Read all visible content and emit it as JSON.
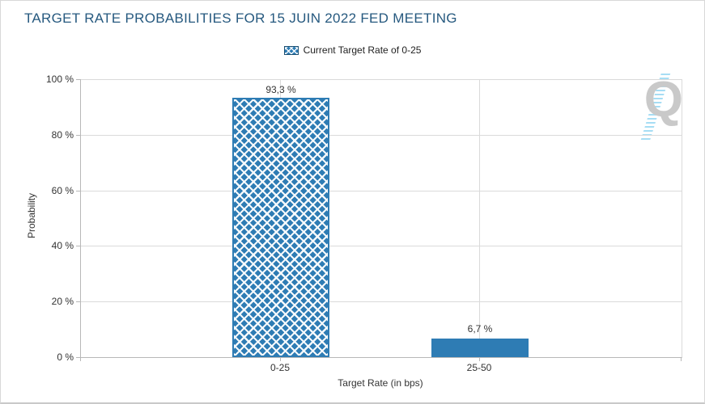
{
  "header": {
    "title": "TARGET RATE PROBABILITIES FOR 15 JUIN 2022 FED MEETING"
  },
  "legend": {
    "items": [
      {
        "label": "Current Target Rate of 0-25",
        "swatch": "blue-crosshatch"
      }
    ]
  },
  "watermark": {
    "letter": "Q"
  },
  "chart_data": {
    "type": "bar",
    "title": "TARGET RATE PROBABILITIES FOR 15 JUIN 2022 FED MEETING",
    "categories": [
      "0-25",
      "25-50"
    ],
    "values": [
      93.3,
      6.7
    ],
    "value_labels": [
      "93,3 %",
      "6,7 %"
    ],
    "series": [
      {
        "name": "Current Target Rate of 0-25",
        "values": [
          93.3,
          6.7
        ]
      }
    ],
    "xlabel": "Target Rate (in bps)",
    "ylabel": "Probability",
    "ylim": [
      0,
      100
    ],
    "yticks": [
      "100 %",
      "80 %",
      "60 %",
      "40 %",
      "20 %",
      "0 %"
    ],
    "grid": true,
    "legend_position": "top-center",
    "bar_styles": [
      "crosshatch",
      "solid"
    ],
    "colors": {
      "bar": "#2e7cb4",
      "title": "#26597f",
      "gridline": "#dadada",
      "axis": "#b8b8b8",
      "text": "#333333",
      "watermark_letter": "#c9c9c9",
      "watermark_dashes": "#a6ddf4"
    }
  }
}
